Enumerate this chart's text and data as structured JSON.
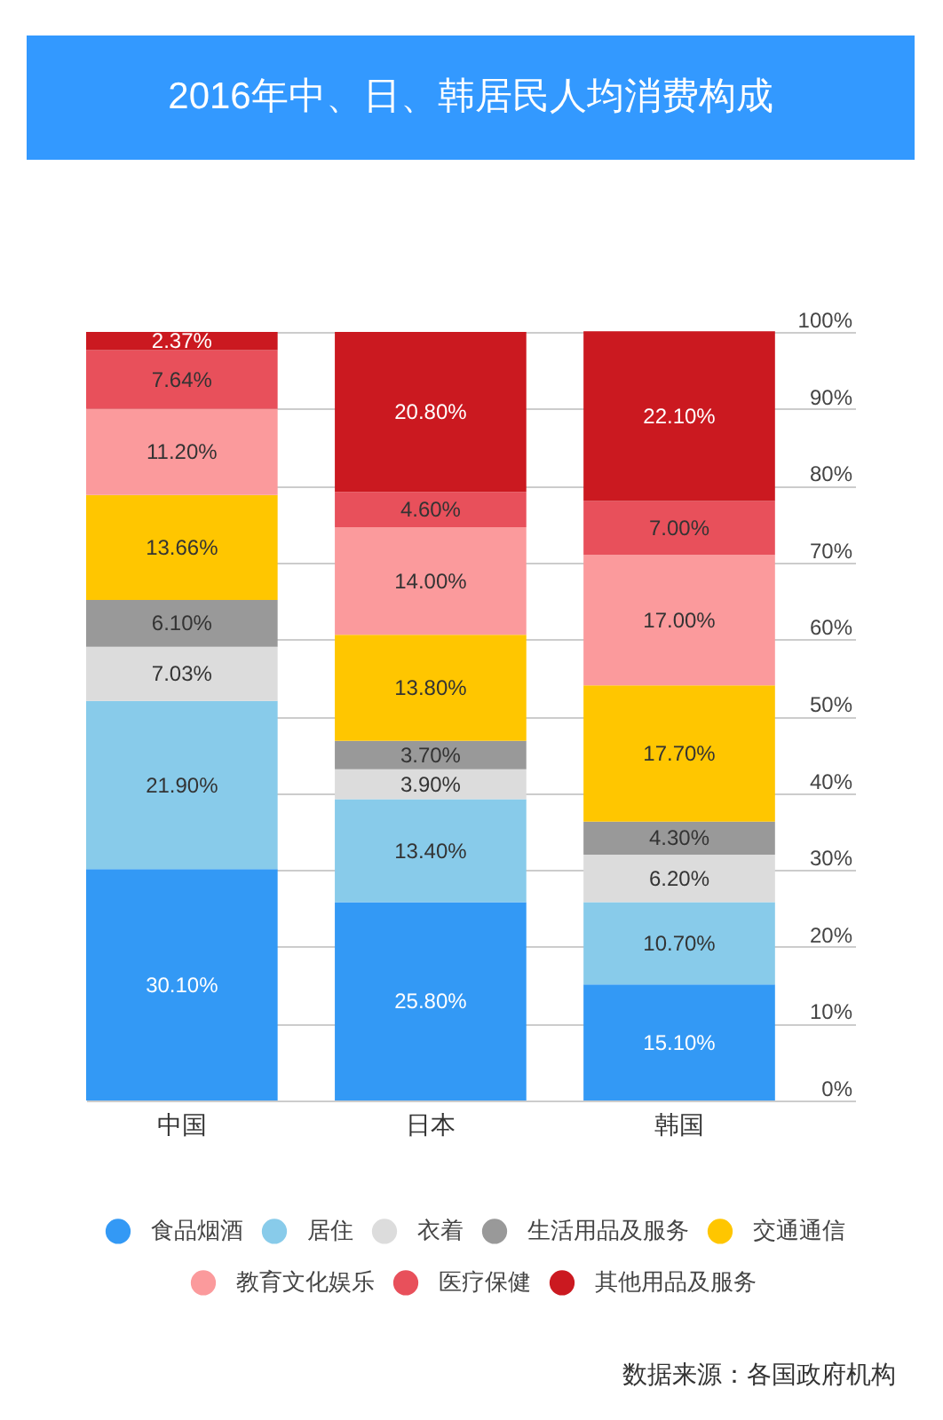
{
  "chart_data": {
    "type": "bar",
    "stacked": true,
    "title": "2016年中、日、韩居民人均消费构成",
    "categories": [
      "中国",
      "日本",
      "韩国"
    ],
    "series": [
      {
        "name": "食品烟酒",
        "color": "#3399f5",
        "values": [
          30.1,
          25.8,
          15.1
        ],
        "value_labels": [
          "30.10%",
          "25.80%",
          "15.10%"
        ]
      },
      {
        "name": "居住",
        "color": "#88cbea",
        "values": [
          21.9,
          13.4,
          10.7
        ],
        "value_labels": [
          "21.90%",
          "13.40%",
          "10.70%"
        ]
      },
      {
        "name": "衣着",
        "color": "#dcdcdc",
        "values": [
          7.03,
          3.9,
          6.2
        ],
        "value_labels": [
          "7.03%",
          "3.90%",
          "6.20%"
        ]
      },
      {
        "name": "生活用品及服务",
        "color": "#999999",
        "values": [
          6.1,
          3.7,
          4.3
        ],
        "value_labels": [
          "6.10%",
          "3.70%",
          "4.30%"
        ]
      },
      {
        "name": "交通通信",
        "color": "#ffc600",
        "values": [
          13.66,
          13.8,
          17.7
        ],
        "value_labels": [
          "13.66%",
          "13.80%",
          "17.70%"
        ]
      },
      {
        "name": "教育文化娱乐",
        "color": "#fb9a9c",
        "values": [
          11.2,
          14.0,
          17.0
        ],
        "value_labels": [
          "11.20%",
          "14.00%",
          "17.00%"
        ]
      },
      {
        "name": "医疗保健",
        "color": "#e8505b",
        "values": [
          7.64,
          4.6,
          7.0
        ],
        "value_labels": [
          "7.64%",
          "4.60%",
          "7.00%"
        ]
      },
      {
        "name": "其他用品及服务",
        "color": "#cb1920",
        "values": [
          2.37,
          20.8,
          22.1
        ],
        "value_labels": [
          "2.37%",
          "20.80%",
          "22.10%"
        ]
      }
    ],
    "ylim": [
      0,
      100
    ],
    "yticks": [
      {
        "value": 0,
        "label": "0%"
      },
      {
        "value": 10,
        "label": "10%"
      },
      {
        "value": 20,
        "label": "20%"
      },
      {
        "value": 30,
        "label": "30%"
      },
      {
        "value": 40,
        "label": "40%"
      },
      {
        "value": 50,
        "label": "50%"
      },
      {
        "value": 60,
        "label": "60%"
      },
      {
        "value": 70,
        "label": "70%"
      },
      {
        "value": 80,
        "label": "80%"
      },
      {
        "value": 90,
        "label": "90%"
      },
      {
        "value": 100,
        "label": "100%"
      }
    ],
    "grid": "y",
    "legend": "bottom",
    "annotations": [
      "数据来源：各国政府机构"
    ]
  }
}
